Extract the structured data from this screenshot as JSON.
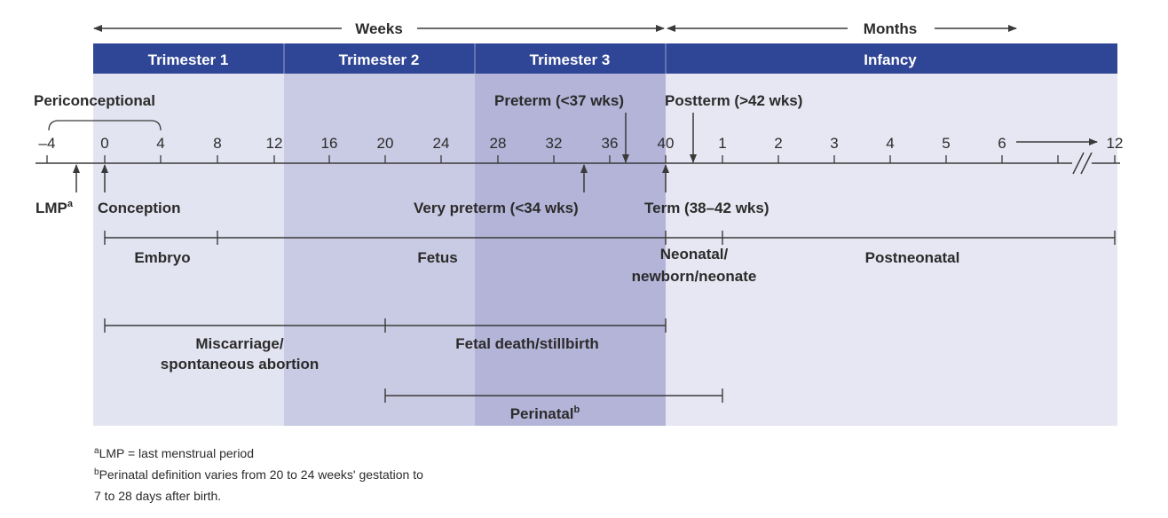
{
  "scale": {
    "weeks_label": "Weeks",
    "months_label": "Months"
  },
  "colors": {
    "header_bar": "#2f4595",
    "band_light": "#e3e4f1",
    "band_mid": "#c9cae3",
    "band_dark": "#b3b4d8",
    "band_infancy": "#e6e7f2",
    "line": "#3a3a3a",
    "text": "#2b2b2b"
  },
  "periods": {
    "trimester1": "Trimester 1",
    "trimester2": "Trimester 2",
    "trimester3": "Trimester 3",
    "infancy": "Infancy"
  },
  "ticks": {
    "weeks": [
      "–4",
      "0",
      "4",
      "8",
      "12",
      "16",
      "20",
      "24",
      "28",
      "32",
      "36",
      "40"
    ],
    "months": [
      "1",
      "2",
      "3",
      "4",
      "5",
      "6",
      "12"
    ]
  },
  "labels": {
    "periconceptional": "Periconceptional",
    "preterm_text": "Preterm (<37 wks)",
    "postterm_text": "Postterm (>42 wks)",
    "lmp": "LMP",
    "lmp_sup": "a",
    "conception": "Conception",
    "very_preterm": "Very preterm (<34 wks)",
    "term": "Term (38–42 wks)",
    "embryo": "Embryo",
    "fetus": "Fetus",
    "neonatal_line1": "Neonatal/",
    "neonatal_line2": "newborn/neonate",
    "postneonatal": "Postneonatal",
    "miscarriage_line1": "Miscarriage/",
    "miscarriage_line2": "spontaneous abortion",
    "fetal_death": "Fetal death/stillbirth",
    "perinatal": "Perinatal",
    "perinatal_sup": "b"
  },
  "footnotes": {
    "a_marker": "a",
    "a_text": "LMP = last menstrual period",
    "b_marker": "b",
    "b_text_line1": "Perinatal definition varies from 20 to 24 weeks' gestation to",
    "b_text_line2": "7 to 28 days after birth."
  }
}
